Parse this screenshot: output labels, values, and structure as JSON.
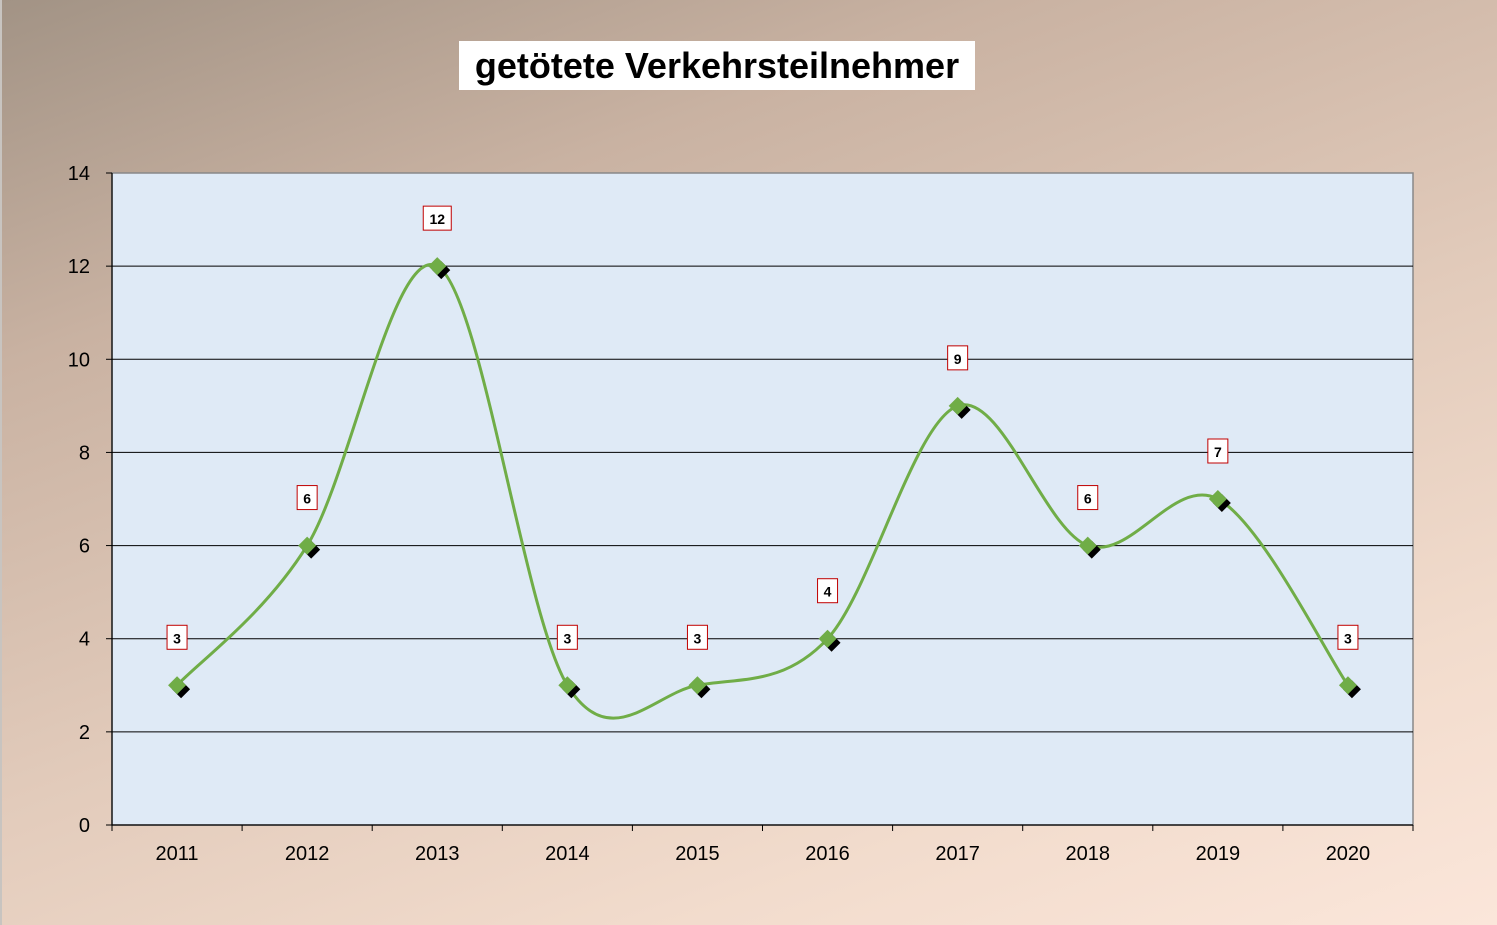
{
  "chart_data": {
    "type": "line",
    "title": "getötete Verkehrsteilnehmer",
    "categories": [
      "2011",
      "2012",
      "2013",
      "2014",
      "2015",
      "2016",
      "2017",
      "2018",
      "2019",
      "2020"
    ],
    "values": [
      3,
      6,
      12,
      3,
      3,
      4,
      9,
      6,
      7,
      3
    ],
    "xlabel": "",
    "ylabel": "",
    "ylim": [
      0,
      14
    ],
    "yticks": [
      0,
      2,
      4,
      6,
      8,
      10,
      12,
      14
    ],
    "grid": true,
    "smooth": true,
    "data_labels": true,
    "colors": {
      "line": "#70ad47",
      "marker": "#70ad47",
      "plot_bg": "#dfeaf6",
      "label_border": "#c00000"
    }
  }
}
